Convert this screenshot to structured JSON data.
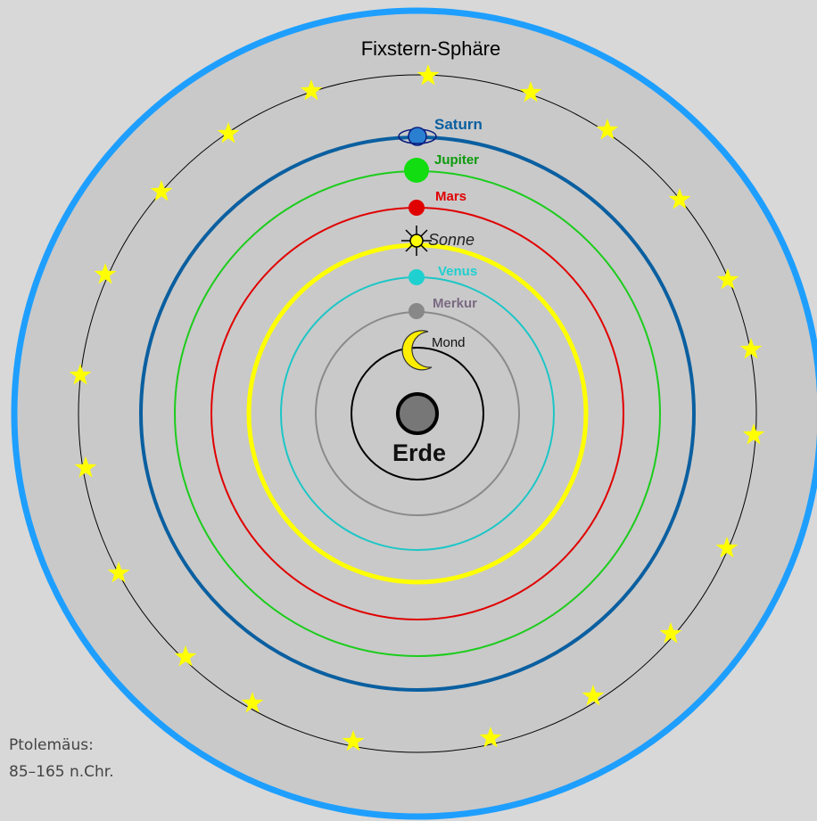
{
  "title": "Fixstern-Sphäre",
  "earth": {
    "label": "Erde"
  },
  "bodies": [
    {
      "key": "mond",
      "label": "Mond",
      "color": "#000000",
      "ring_color": "#000000",
      "icon": "crescent-moon-icon"
    },
    {
      "key": "merkur",
      "label": "Merkur",
      "color": "#7a6a82",
      "ring_color": "#8a8a8a",
      "icon": "planet-dot-icon"
    },
    {
      "key": "venus",
      "label": "Venus",
      "color": "#1fd0d0",
      "ring_color": "#1cc6c6",
      "icon": "planet-dot-icon"
    },
    {
      "key": "sonne",
      "label": "Sonne",
      "color": "#222222",
      "ring_color": "#ffff00",
      "icon": "sun-icon"
    },
    {
      "key": "mars",
      "label": "Mars",
      "color": "#e00000",
      "ring_color": "#e00000",
      "icon": "planet-dot-icon"
    },
    {
      "key": "jupiter",
      "label": "Jupiter",
      "color": "#0a9a0a",
      "ring_color": "#1ccc1c",
      "icon": "planet-dot-icon"
    },
    {
      "key": "saturn",
      "label": "Saturn",
      "color": "#0a5fa0",
      "ring_color": "#0a5fa0",
      "icon": "ringed-planet-icon"
    }
  ],
  "colors": {
    "background": "#d8d8d8",
    "outer_sphere_fill": "#c9c9c9",
    "outer_sphere_stroke": "#1e9fff",
    "star": "#ffff00",
    "earth": "#777777"
  },
  "caption": {
    "line1": "Ptolemäus:",
    "line2": "85–165 n.Chr."
  }
}
